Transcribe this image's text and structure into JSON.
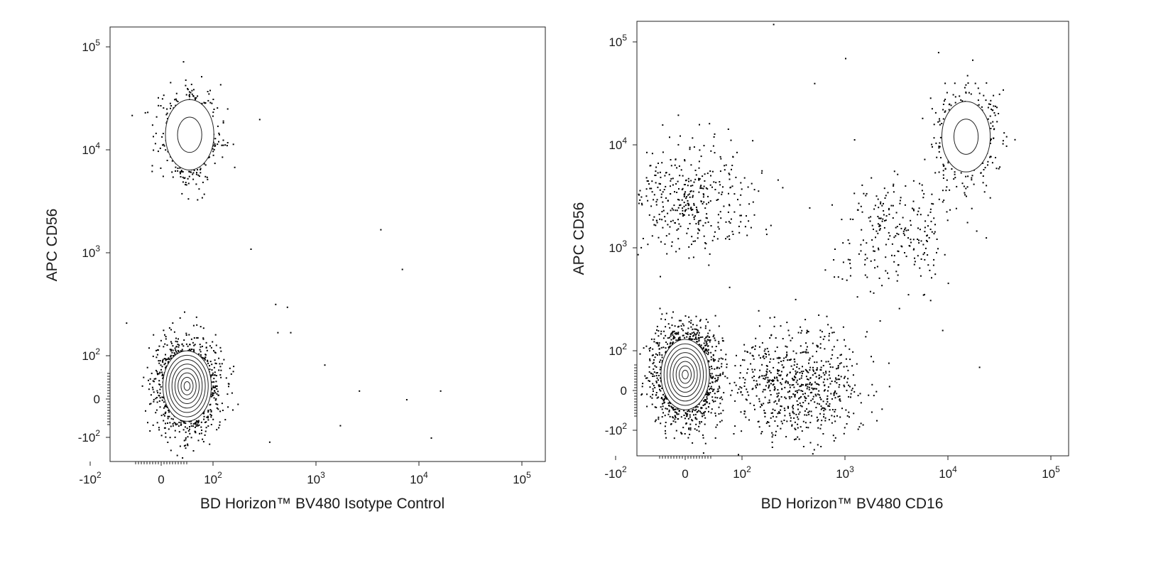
{
  "chart_data": [
    {
      "type": "scatter",
      "subtype": "flow-cytometry-contour-dot-plot",
      "xlabel": "BD Horizon™ BV480 Isotype Control",
      "ylabel": "APC CD56",
      "x_scale": "biexponential",
      "y_scale": "biexponential",
      "xlim": [
        -200,
        250000
      ],
      "ylim": [
        -300,
        250000
      ],
      "x_ticks": [
        {
          "v": -100,
          "base": "-10",
          "exp": "2"
        },
        {
          "v": 0,
          "base": "0",
          "exp": ""
        },
        {
          "v": 100,
          "base": "10",
          "exp": "2"
        },
        {
          "v": 1000,
          "base": "10",
          "exp": "3"
        },
        {
          "v": 10000,
          "base": "10",
          "exp": "4"
        },
        {
          "v": 100000,
          "base": "10",
          "exp": "5"
        }
      ],
      "y_ticks": [
        {
          "v": -100,
          "base": "-10",
          "exp": "2"
        },
        {
          "v": 0,
          "base": "0",
          "exp": ""
        },
        {
          "v": 100,
          "base": "10",
          "exp": "2"
        },
        {
          "v": 1000,
          "base": "10",
          "exp": "3"
        },
        {
          "v": 10000,
          "base": "10",
          "exp": "4"
        },
        {
          "v": 100000,
          "base": "10",
          "exp": "5"
        }
      ],
      "grid": false,
      "legend": "none",
      "populations": [
        {
          "x": 50,
          "y": 30,
          "count": 1500,
          "contour": true
        },
        {
          "x": 55,
          "y": 14000,
          "count": 700,
          "contour": true
        }
      ],
      "outliers": [
        {
          "x": 280,
          "y": 20000
        },
        {
          "x": 4200,
          "y": 1700
        },
        {
          "x": 6800,
          "y": 700
        },
        {
          "x": 400,
          "y": 320
        },
        {
          "x": 520,
          "y": 300
        },
        {
          "x": 420,
          "y": 170
        },
        {
          "x": 560,
          "y": 170
        },
        {
          "x": 1200,
          "y": 80
        },
        {
          "x": 2600,
          "y": 20
        },
        {
          "x": 7500,
          "y": 0
        },
        {
          "x": 1700,
          "y": -60
        },
        {
          "x": 13000,
          "y": -100
        },
        {
          "x": 16000,
          "y": 20
        },
        {
          "x": 230,
          "y": 1100
        },
        {
          "x": 350,
          "y": -140
        }
      ]
    },
    {
      "type": "scatter",
      "subtype": "flow-cytometry-contour-dot-plot",
      "xlabel": "BD Horizon™ BV480  CD16",
      "ylabel": "APC CD56",
      "x_scale": "biexponential",
      "y_scale": "biexponential",
      "xlim": [
        -200,
        250000
      ],
      "ylim": [
        -300,
        250000
      ],
      "x_ticks": [
        {
          "v": -100,
          "base": "-10",
          "exp": "2"
        },
        {
          "v": 0,
          "base": "0",
          "exp": ""
        },
        {
          "v": 100,
          "base": "10",
          "exp": "2"
        },
        {
          "v": 1000,
          "base": "10",
          "exp": "3"
        },
        {
          "v": 10000,
          "base": "10",
          "exp": "4"
        },
        {
          "v": 100000,
          "base": "10",
          "exp": "5"
        }
      ],
      "y_ticks": [
        {
          "v": -100,
          "base": "-10",
          "exp": "2"
        },
        {
          "v": 0,
          "base": "0",
          "exp": ""
        },
        {
          "v": 100,
          "base": "10",
          "exp": "2"
        },
        {
          "v": 1000,
          "base": "10",
          "exp": "3"
        },
        {
          "v": 10000,
          "base": "10",
          "exp": "4"
        },
        {
          "v": 100000,
          "base": "10",
          "exp": "5"
        }
      ],
      "grid": false,
      "legend": "none",
      "populations": [
        {
          "x": 0,
          "y": 40,
          "count": 1800,
          "contour": true
        },
        {
          "x": 15000,
          "y": 12000,
          "count": 500,
          "contour": true
        },
        {
          "x": 350,
          "y": 20,
          "count": 700,
          "contour": false
        },
        {
          "x": 5,
          "y": 3000,
          "count": 400,
          "contour": false
        },
        {
          "x": 3000,
          "y": 1500,
          "count": 250,
          "contour": false
        }
      ],
      "outliers": [
        {
          "x": 200,
          "y": 150000
        },
        {
          "x": 8000,
          "y": 80000
        },
        {
          "x": 1000,
          "y": 70000
        },
        {
          "x": 20000,
          "y": 60
        },
        {
          "x": 500,
          "y": 40000
        }
      ]
    }
  ]
}
